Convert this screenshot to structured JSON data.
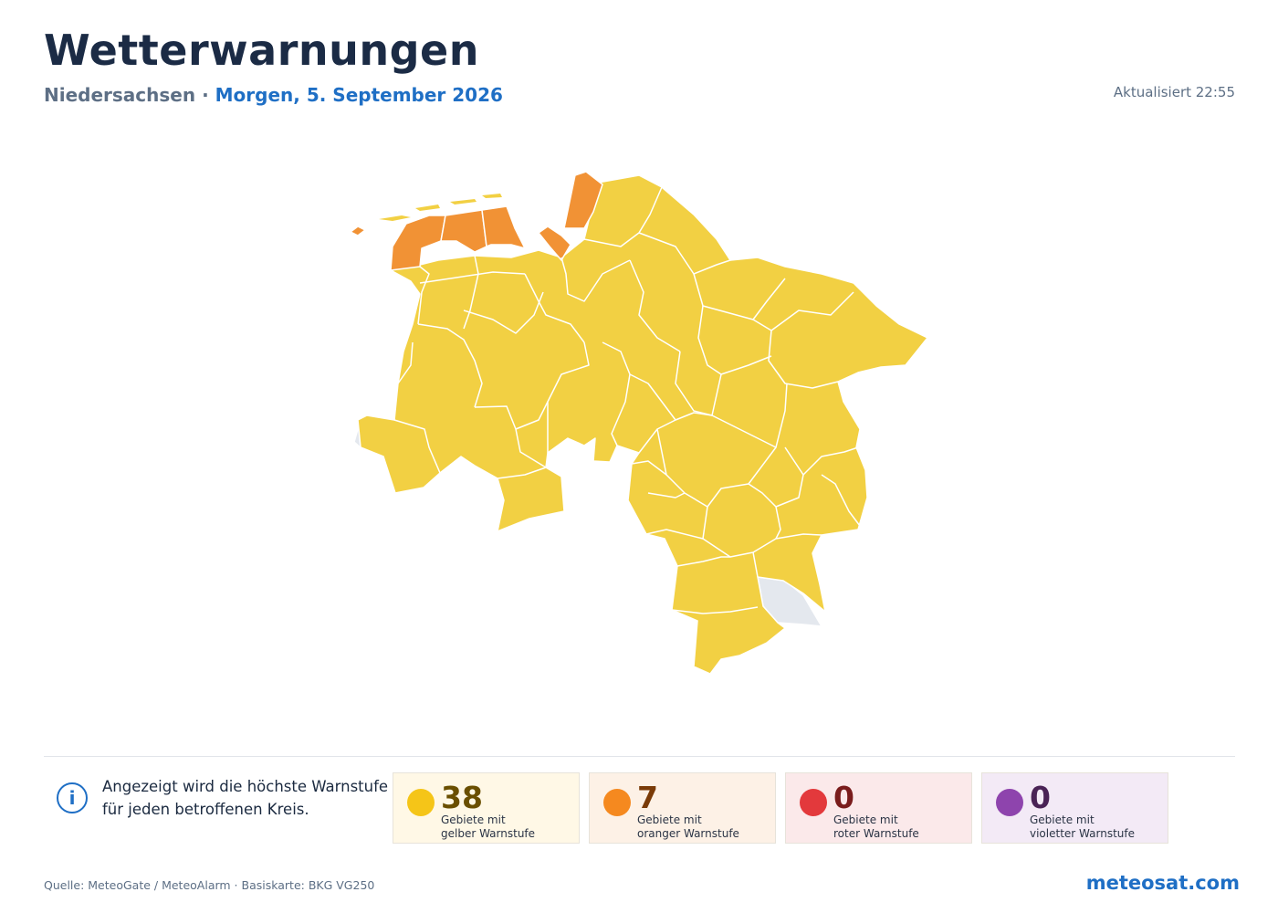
{
  "header": {
    "title": "Wetterwarnungen",
    "region": "Niedersachsen",
    "separator": " · ",
    "date": "Morgen, 5. September 2026",
    "updated": "Aktualisiert 22:55"
  },
  "map": {
    "colors": {
      "yellow": "#f2d043",
      "orange": "#f19235",
      "no_warning": "#e4e8ee",
      "border": "#ffffff"
    },
    "icons": [
      "info-icon"
    ]
  },
  "info": {
    "icon": "info-icon",
    "text_line1": "Angezeigt wird die höchste Warnstufe",
    "text_line2": "für jeden betroffenen Kreis."
  },
  "stats": [
    {
      "count": "38",
      "line1": "Gebiete mit",
      "line2": "gelber Warnstufe",
      "color": "#f5c518",
      "count_color": "#6a4f00"
    },
    {
      "count": "7",
      "line1": "Gebiete mit",
      "line2": "oranger Warnstufe",
      "color": "#f5891f",
      "count_color": "#7a3b08"
    },
    {
      "count": "0",
      "line1": "Gebiete mit",
      "line2": "roter Warnstufe",
      "color": "#e3393c",
      "count_color": "#7a1c1c"
    },
    {
      "count": "0",
      "line1": "Gebiete mit",
      "line2": "violetter Warnstufe",
      "color": "#8e44ad",
      "count_color": "#4a2356"
    }
  ],
  "footer": {
    "source": "Quelle: MeteoGate / MeteoAlarm · Basiskarte: BKG VG250",
    "brand": "meteosat.com"
  }
}
